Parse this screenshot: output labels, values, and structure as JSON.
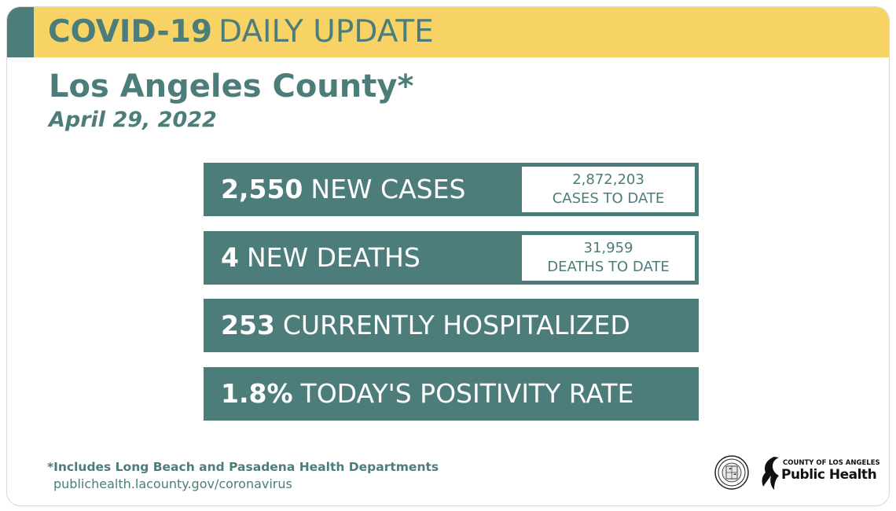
{
  "banner": {
    "title_bold": "COVID-19",
    "title_light": "DAILY UPDATE"
  },
  "header": {
    "county": "Los Angeles County*",
    "date": "April 29, 2022"
  },
  "stats": [
    {
      "number": "2,550",
      "label": "NEW CASES",
      "to_date_value": "2,872,203",
      "to_date_label": "CASES TO DATE"
    },
    {
      "number": "4",
      "label": "NEW DEATHS",
      "to_date_value": "31,959",
      "to_date_label": "DEATHS TO DATE"
    },
    {
      "number": "253",
      "label": "CURRENTLY HOSPITALIZED"
    },
    {
      "number": "1.8%",
      "label": "TODAY'S POSITIVITY RATE"
    }
  ],
  "footer": {
    "footnote": "*Includes Long Beach and Pasadena Health Departments",
    "url": "publichealth.lacounty.gov/coronavirus"
  },
  "logo": {
    "small_text": "COUNTY OF LOS ANGELES",
    "big_text": "Public Health"
  },
  "colors": {
    "teal": "#4d7d7a",
    "yellow": "#f7d366",
    "white": "#ffffff"
  },
  "icons": {
    "seal": "county-seal-icon",
    "logo_mark": "public-health-mark-icon"
  }
}
